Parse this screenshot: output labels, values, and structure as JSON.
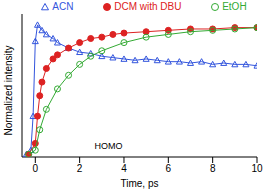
{
  "chart_data": {
    "type": "scatter",
    "xlabel": "Time, ps",
    "ylabel": "Normalized intensity",
    "xlim": [
      -0.6,
      10
    ],
    "xticks": [
      0,
      2,
      4,
      6,
      8,
      10
    ],
    "ylim": [
      0,
      1.05
    ],
    "yticks": [
      0,
      0.2,
      0.4,
      0.6,
      0.8,
      1
    ],
    "tick_labels": "x",
    "legend": "top",
    "annotations": [
      {
        "text": "HOMO",
        "x": 3.3,
        "y": 0.08
      }
    ],
    "series": [
      {
        "name": "ACN",
        "color": "#3355dd",
        "marker": "triangle-open",
        "line_style": "solid",
        "x": [
          -0.4,
          -0.2,
          -0.1,
          0,
          0.1,
          0.3,
          0.5,
          0.8,
          1,
          1.5,
          2,
          2.5,
          3,
          3.5,
          4,
          4.5,
          5,
          5.5,
          6,
          6.5,
          7,
          7.5,
          8,
          8.5,
          9,
          9.5,
          10
        ],
        "values": [
          0.02,
          0.05,
          0.3,
          0.85,
          0.97,
          0.93,
          0.9,
          0.87,
          0.84,
          0.8,
          0.77,
          0.76,
          0.74,
          0.73,
          0.72,
          0.71,
          0.72,
          0.71,
          0.7,
          0.7,
          0.69,
          0.7,
          0.68,
          0.69,
          0.68,
          0.68,
          0.67
        ]
      },
      {
        "name": "DCM with DBU",
        "color": "#dd2222",
        "marker": "circle",
        "line_style": "solid",
        "x": [
          -0.3,
          0,
          0.1,
          0.2,
          0.3,
          0.5,
          0.8,
          1,
          1.5,
          2,
          2.5,
          3,
          3.5,
          4,
          5,
          6,
          7,
          8,
          9,
          10
        ],
        "values": [
          0.02,
          0.1,
          0.3,
          0.45,
          0.55,
          0.65,
          0.72,
          0.75,
          0.8,
          0.84,
          0.87,
          0.88,
          0.9,
          0.91,
          0.92,
          0.93,
          0.94,
          0.94,
          0.95,
          0.95
        ]
      },
      {
        "name": "EtOH",
        "color": "#33aa33",
        "marker": "circle-open",
        "line_style": "solid",
        "x": [
          -0.3,
          0,
          0.2,
          0.5,
          1,
          1.5,
          2,
          2.5,
          3,
          4,
          5,
          6,
          7,
          8,
          9,
          10
        ],
        "values": [
          0.02,
          0.05,
          0.2,
          0.35,
          0.5,
          0.6,
          0.68,
          0.74,
          0.78,
          0.84,
          0.88,
          0.9,
          0.92,
          0.93,
          0.94,
          0.95
        ]
      }
    ]
  }
}
